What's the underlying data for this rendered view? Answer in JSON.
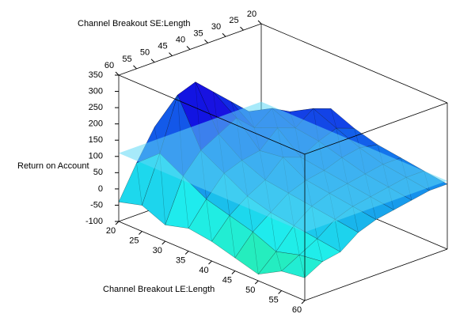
{
  "chart_data": {
    "type": "surface3d",
    "x_label": "Channel Breakout LE:Length",
    "y_label": "Channel Breakout SE:Length",
    "z_label": "Return on Account",
    "x_values": [
      20,
      25,
      30,
      35,
      40,
      45,
      50,
      55,
      60
    ],
    "y_values": [
      20,
      25,
      30,
      35,
      40,
      45,
      50,
      55,
      60
    ],
    "z": [
      [
        60,
        90,
        140,
        180,
        150,
        130,
        120,
        110,
        100
      ],
      [
        80,
        120,
        160,
        200,
        170,
        140,
        120,
        110,
        100
      ],
      [
        100,
        150,
        190,
        160,
        150,
        130,
        110,
        100,
        90
      ],
      [
        120,
        200,
        150,
        180,
        120,
        110,
        100,
        90,
        80
      ],
      [
        150,
        250,
        200,
        130,
        140,
        100,
        90,
        80,
        70
      ],
      [
        180,
        300,
        170,
        120,
        90,
        80,
        70,
        60,
        50
      ],
      [
        150,
        280,
        140,
        100,
        60,
        40,
        30,
        20,
        10
      ],
      [
        60,
        120,
        80,
        40,
        20,
        0,
        -30,
        -10,
        0
      ],
      [
        -40,
        -20,
        -50,
        -30,
        -40,
        -60,
        -80,
        -40,
        -30
      ]
    ],
    "plane_value": 110,
    "plane_color": "#5fd8f5",
    "xlim": [
      20,
      60
    ],
    "ylim": [
      20,
      60
    ],
    "zlim": [
      -100,
      350
    ],
    "xticks": [
      20,
      25,
      30,
      35,
      40,
      45,
      50,
      55,
      60
    ],
    "yticks": [
      60,
      55,
      50,
      45,
      40,
      35,
      30,
      25,
      20
    ],
    "zticks": [
      -100,
      -50,
      0,
      50,
      100,
      150,
      200,
      250,
      300,
      350
    ]
  }
}
